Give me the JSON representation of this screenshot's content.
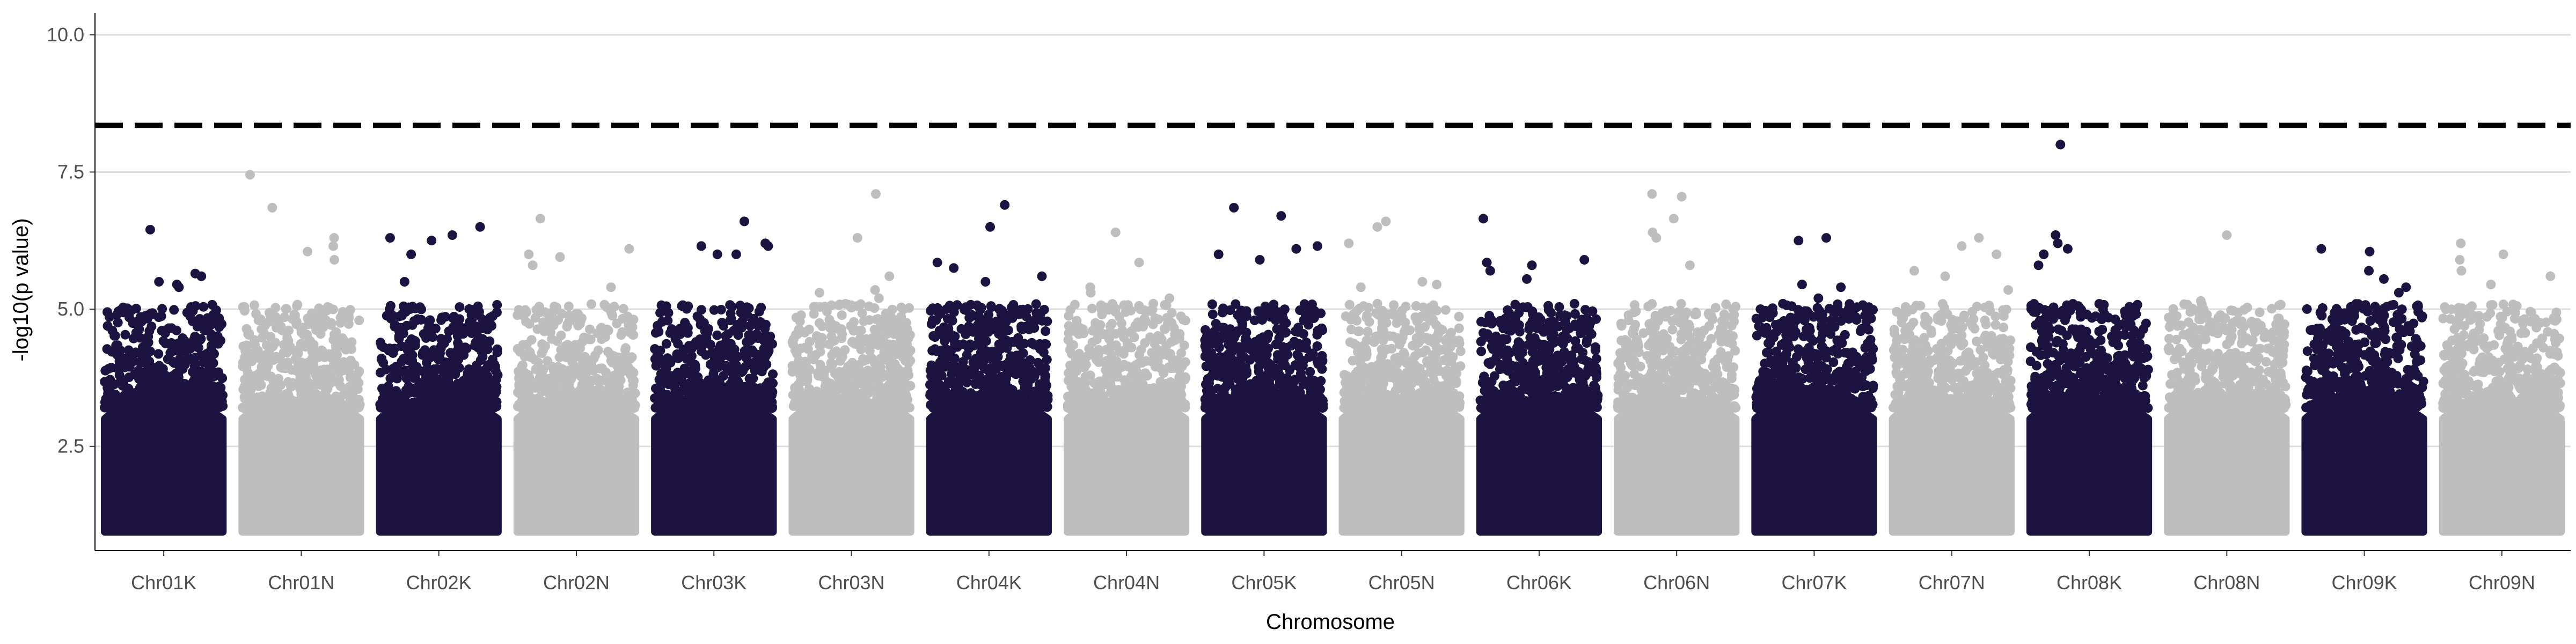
{
  "chart_data": {
    "type": "scatter",
    "subtype": "manhattan",
    "title": "",
    "xlabel": "Chromosome",
    "ylabel": "-log10(p value)",
    "ylim": [
      0.6,
      10.4
    ],
    "yticks": [
      2.5,
      5.0,
      7.5,
      10.0
    ],
    "ytick_labels": [
      "2.5",
      "5.0",
      "7.5",
      "10.0"
    ],
    "grid": "horizontal major",
    "legend": "none",
    "threshold": {
      "value": 8.35,
      "style": "dashed",
      "color": "#000000"
    },
    "colors": {
      "dark": "#1c1340",
      "light": "#bebebe"
    },
    "chromosomes": [
      {
        "name": "Chr01K",
        "color": "dark",
        "top_peaks": [
          6.45,
          5.65,
          5.6,
          5.5,
          5.45,
          5.4
        ]
      },
      {
        "name": "Chr01N",
        "color": "light",
        "top_peaks": [
          7.45,
          6.85,
          6.3,
          6.15,
          6.05,
          5.9
        ]
      },
      {
        "name": "Chr02K",
        "color": "dark",
        "top_peaks": [
          6.5,
          6.35,
          6.3,
          6.25,
          6.0,
          5.5
        ]
      },
      {
        "name": "Chr02N",
        "color": "light",
        "top_peaks": [
          6.65,
          6.1,
          6.0,
          5.95,
          5.8,
          5.4
        ]
      },
      {
        "name": "Chr03K",
        "color": "dark",
        "top_peaks": [
          6.6,
          6.2,
          6.15,
          6.15,
          6.0,
          6.0
        ]
      },
      {
        "name": "Chr03N",
        "color": "light",
        "top_peaks": [
          7.1,
          6.3,
          5.6,
          5.35,
          5.3,
          5.2
        ]
      },
      {
        "name": "Chr04K",
        "color": "dark",
        "top_peaks": [
          6.9,
          6.5,
          5.85,
          5.75,
          5.6,
          5.5
        ]
      },
      {
        "name": "Chr04N",
        "color": "light",
        "top_peaks": [
          6.4,
          5.85,
          5.4,
          5.3,
          5.2,
          5.1
        ]
      },
      {
        "name": "Chr05K",
        "color": "dark",
        "top_peaks": [
          6.85,
          6.7,
          6.15,
          6.1,
          6.0,
          5.9
        ]
      },
      {
        "name": "Chr05N",
        "color": "light",
        "top_peaks": [
          6.6,
          6.5,
          6.2,
          5.5,
          5.45,
          5.4
        ]
      },
      {
        "name": "Chr06K",
        "color": "dark",
        "top_peaks": [
          6.65,
          5.9,
          5.85,
          5.8,
          5.7,
          5.55
        ]
      },
      {
        "name": "Chr06N",
        "color": "light",
        "top_peaks": [
          7.1,
          7.05,
          6.65,
          6.4,
          6.3,
          5.8
        ]
      },
      {
        "name": "Chr07K",
        "color": "dark",
        "top_peaks": [
          6.3,
          6.25,
          5.45,
          5.4,
          5.2,
          5.0
        ]
      },
      {
        "name": "Chr07N",
        "color": "light",
        "top_peaks": [
          6.3,
          6.15,
          6.0,
          5.7,
          5.6,
          5.35
        ]
      },
      {
        "name": "Chr08K",
        "color": "dark",
        "top_peaks": [
          8.0,
          6.35,
          6.2,
          6.1,
          6.0,
          5.8
        ]
      },
      {
        "name": "Chr08N",
        "color": "light",
        "top_peaks": [
          6.35,
          5.15,
          5.0,
          4.9,
          4.8,
          4.75
        ]
      },
      {
        "name": "Chr09K",
        "color": "dark",
        "top_peaks": [
          6.1,
          6.05,
          5.7,
          5.55,
          5.4,
          5.3
        ]
      },
      {
        "name": "Chr09N",
        "color": "light",
        "top_peaks": [
          6.2,
          6.0,
          5.9,
          5.7,
          5.6,
          5.45
        ]
      }
    ]
  }
}
